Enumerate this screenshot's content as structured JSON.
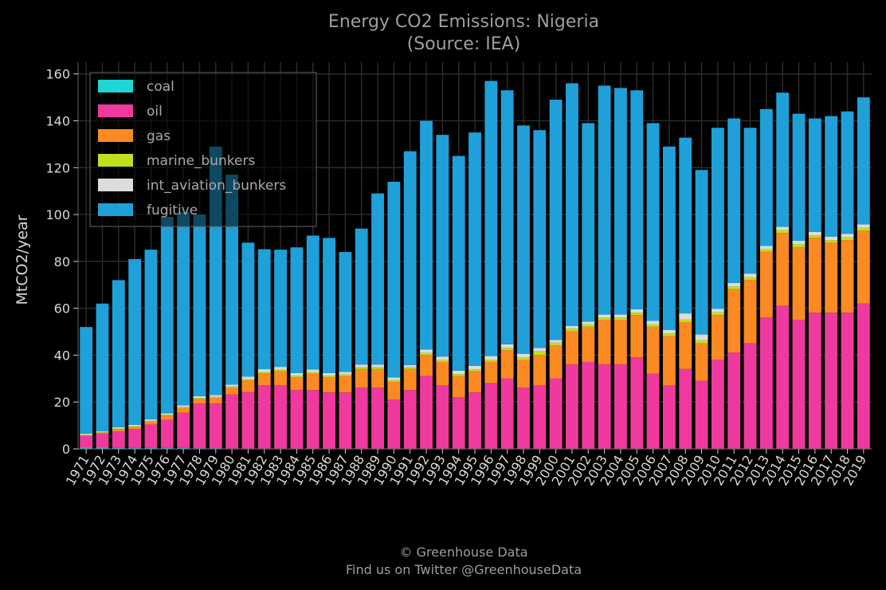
{
  "chart_data": {
    "type": "bar",
    "stacked": true,
    "title": "Energy CO2 Emissions: Nigeria",
    "subtitle": "(Source: IEA)",
    "xlabel": "",
    "ylabel": "MtCO2/year",
    "ylim": [
      0,
      165
    ],
    "yticks": [
      0,
      20,
      40,
      60,
      80,
      100,
      120,
      140,
      160
    ],
    "grid": true,
    "legend_position": "top-left",
    "categories": [
      "1971",
      "1972",
      "1973",
      "1974",
      "1975",
      "1976",
      "1977",
      "1978",
      "1979",
      "1980",
      "1981",
      "1982",
      "1983",
      "1984",
      "1985",
      "1986",
      "1987",
      "1988",
      "1989",
      "1990",
      "1991",
      "1992",
      "1993",
      "1994",
      "1995",
      "1996",
      "1997",
      "1998",
      "1999",
      "2000",
      "2001",
      "2002",
      "2003",
      "2004",
      "2005",
      "2006",
      "2007",
      "2008",
      "2009",
      "2010",
      "2011",
      "2012",
      "2013",
      "2014",
      "2015",
      "2016",
      "2017",
      "2018",
      "2019"
    ],
    "series": [
      {
        "name": "coal",
        "color": "#1ed6d6",
        "values": [
          0.5,
          0.5,
          0.4,
          0.4,
          0.4,
          0.4,
          0.4,
          0.3,
          0.3,
          0.2,
          0.2,
          0.2,
          0.2,
          0.1,
          0.1,
          0.1,
          0.1,
          0.1,
          0.1,
          0.1,
          0.1,
          0.1,
          0.1,
          0.1,
          0.1,
          0.1,
          0.1,
          0.1,
          0.1,
          0.1,
          0.1,
          0.1,
          0.1,
          0.1,
          0.1,
          0.1,
          0.1,
          0.1,
          0.1,
          0.1,
          0.1,
          0.1,
          0.1,
          0.1,
          0.1,
          0.1,
          0.1,
          0.1,
          0.1
        ]
      },
      {
        "name": "oil",
        "color": "#f0399e",
        "values": [
          5,
          6,
          7,
          8,
          10,
          12,
          15,
          19,
          19,
          23,
          24,
          27,
          27,
          25,
          25,
          24,
          24,
          26,
          26,
          21,
          25,
          31,
          27,
          22,
          24,
          28,
          30,
          26,
          27,
          30,
          36,
          37,
          36,
          36,
          39,
          32,
          27,
          34,
          29,
          38,
          41,
          45,
          56,
          61,
          55,
          58,
          58,
          58,
          62
        ]
      },
      {
        "name": "gas",
        "color": "#fb8a22",
        "values": [
          0.3,
          0.4,
          1,
          1,
          1.2,
          1.8,
          2,
          2,
          2.5,
          3,
          5,
          5,
          6,
          5.5,
          7,
          6.5,
          7,
          8,
          8,
          7.5,
          9,
          9,
          10,
          9,
          9,
          9,
          12,
          12,
          13,
          14,
          14,
          15,
          19,
          19,
          18,
          20,
          21,
          20,
          16,
          19,
          27,
          27,
          28,
          31,
          31,
          32,
          30,
          31,
          31
        ]
      },
      {
        "name": "marine_bunkers",
        "color": "#c0e01e",
        "values": [
          0.3,
          0.3,
          0.3,
          0.3,
          0.4,
          0.4,
          0.4,
          0.4,
          0.4,
          0.4,
          0.6,
          0.6,
          0.6,
          0.6,
          0.6,
          0.6,
          0.6,
          0.7,
          0.7,
          0.7,
          0.7,
          0.8,
          0.8,
          0.8,
          0.8,
          1,
          1,
          1,
          1.5,
          1.2,
          1.2,
          1,
          1,
          1,
          1,
          1,
          1.2,
          1.2,
          1.2,
          1.2,
          1.2,
          1.2,
          1,
          1.2,
          1.2,
          1,
          1,
          1.2,
          1.2
        ]
      },
      {
        "name": "int_aviation_bunkers",
        "color": "#dcdcdc",
        "values": [
          0.4,
          0.4,
          0.5,
          0.6,
          0.6,
          0.6,
          0.8,
          0.8,
          0.8,
          0.8,
          1,
          1.2,
          1.2,
          1.2,
          1.2,
          1.2,
          1.2,
          1.2,
          1.2,
          1.2,
          1,
          1.5,
          1.5,
          1.5,
          1.5,
          1.5,
          1.5,
          1.5,
          1.5,
          1.2,
          1.2,
          1.2,
          1.2,
          1.2,
          1.5,
          1.5,
          1.5,
          2.5,
          2.5,
          1.5,
          1.5,
          1.5,
          1.5,
          1.5,
          1.5,
          1.5,
          1.5,
          1.5,
          1.5
        ]
      },
      {
        "name": "fugitive",
        "color": "#1fa0d8",
        "values": [
          45.5,
          54.4,
          62.8,
          70.7,
          72.4,
          83.8,
          82.4,
          77.5,
          106,
          89.6,
          57.2,
          51.2,
          50,
          53.6,
          57.1,
          57.6,
          51.1,
          58,
          73,
          83.5,
          91.2,
          97.6,
          94.6,
          91.6,
          99.6,
          117.4,
          108.4,
          97.4,
          92.9,
          102.5,
          103.5,
          84.7,
          97.7,
          96.7,
          93.4,
          84.4,
          78.2,
          75,
          70.2,
          77.2,
          70.2,
          62.2,
          58.4,
          57.2,
          54.2,
          48.4,
          51.4,
          52.2,
          54.2
        ]
      }
    ]
  },
  "footer": {
    "line1": "© Greenhouse Data",
    "line2": "Find us on Twitter @GreenhouseData"
  }
}
